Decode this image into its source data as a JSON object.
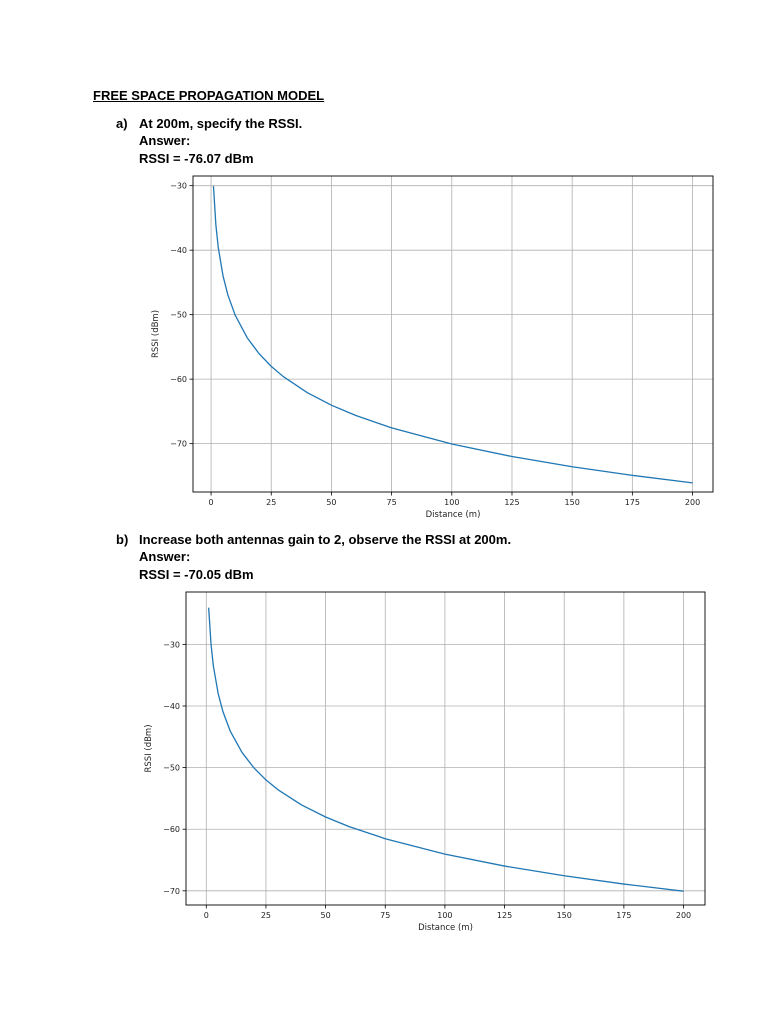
{
  "title": "FREE SPACE PROPAGATION MODEL",
  "questions": [
    {
      "marker": "a)",
      "question": "At 200m, specify the RSSI.",
      "answer_label": "Answer:",
      "answer": "RSSI = -76.07 dBm"
    },
    {
      "marker": "b)",
      "question": "Increase both antennas gain to 2, observe the RSSI at 200m.",
      "answer_label": "Answer:",
      "answer": "RSSI = -70.05 dBm"
    }
  ],
  "chart_data": [
    {
      "type": "line",
      "xlabel": "Distance (m)",
      "ylabel": "RSSI (dBm)",
      "xlim": [
        -7.5,
        208.5
      ],
      "ylim": [
        -77.5,
        -28.5
      ],
      "xticks": [
        0,
        25,
        50,
        75,
        100,
        125,
        150,
        175,
        200
      ],
      "yticks": [
        -30,
        -40,
        -50,
        -60,
        -70
      ],
      "grid": true,
      "series": [
        {
          "color": "#1f77b4",
          "x": [
            1,
            2,
            3,
            5,
            7,
            10,
            15,
            20,
            25,
            30,
            40,
            50,
            60,
            75,
            100,
            125,
            150,
            175,
            200
          ],
          "y": [
            -30.06,
            -36.08,
            -39.6,
            -44.04,
            -46.96,
            -50.06,
            -53.58,
            -56.08,
            -58.02,
            -59.6,
            -62.1,
            -64.04,
            -65.62,
            -67.56,
            -70.06,
            -72.0,
            -73.58,
            -74.92,
            -76.08
          ]
        }
      ]
    },
    {
      "type": "line",
      "xlabel": "Distance (m)",
      "ylabel": "RSSI (dBm)",
      "xlim": [
        -8.5,
        209
      ],
      "ylim": [
        -72.3,
        -21.5
      ],
      "xticks": [
        0,
        25,
        50,
        75,
        100,
        125,
        150,
        175,
        200
      ],
      "yticks": [
        -30,
        -40,
        -50,
        -60,
        -70
      ],
      "grid": true,
      "series": [
        {
          "color": "#1f77b4",
          "x": [
            1,
            2,
            3,
            5,
            7,
            10,
            15,
            20,
            25,
            30,
            40,
            50,
            60,
            75,
            100,
            125,
            150,
            175,
            200
          ],
          "y": [
            -24.04,
            -30.06,
            -33.58,
            -38.02,
            -40.94,
            -44.04,
            -47.56,
            -50.06,
            -52.0,
            -53.58,
            -56.08,
            -58.02,
            -59.6,
            -61.54,
            -64.04,
            -65.98,
            -67.56,
            -68.9,
            -70.06
          ]
        }
      ]
    }
  ]
}
